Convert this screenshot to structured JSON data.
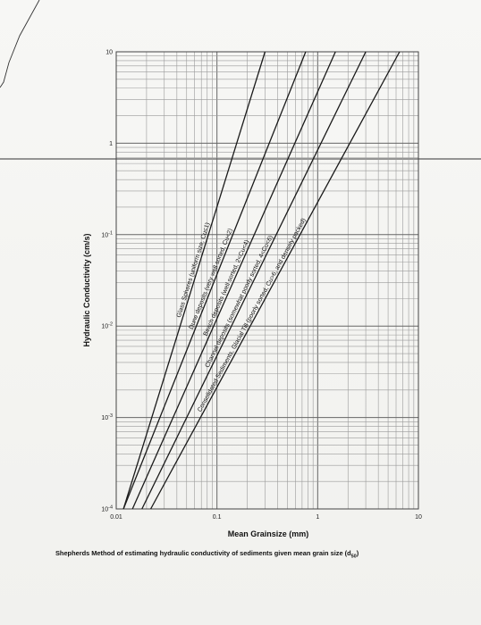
{
  "chart_data": {
    "type": "line",
    "title": "",
    "xlabel": "Mean Grainsize (mm)",
    "ylabel": "Hydraulic Conductivity (cm/s)",
    "xscale": "log",
    "yscale": "log",
    "xlim": [
      0.01,
      10
    ],
    "ylim": [
      0.0001,
      10
    ],
    "x_ticks": [
      "0.01",
      "0.1",
      "1",
      "10"
    ],
    "y_ticks": [
      {
        "base": "10",
        "exp": "",
        "value": 10
      },
      {
        "base": "1",
        "exp": "",
        "value": 1
      },
      {
        "base": "10",
        "exp": "-1",
        "value": 0.1
      },
      {
        "base": "10",
        "exp": "-2",
        "value": 0.01
      },
      {
        "base": "10",
        "exp": "-3",
        "value": 0.001
      },
      {
        "base": "10",
        "exp": "-4",
        "value": 0.0001
      }
    ],
    "grid": true,
    "series": [
      {
        "name": "Glass Spheres (uniform size, Cu≤1)",
        "x": [
          0.0118,
          0.3
        ],
        "y": [
          0.0001,
          10
        ]
      },
      {
        "name": "Dune deposits (very well sorted, Cu<2)",
        "x": [
          0.0118,
          0.76
        ],
        "y": [
          0.0001,
          10
        ]
      },
      {
        "name": "Beach deposits (well sorted, 2<Cu<4)",
        "x": [
          0.0145,
          1.5
        ],
        "y": [
          0.0001,
          10
        ]
      },
      {
        "name": "Channel deposits (somewhat poorly sorted, 4<Cu<6)",
        "x": [
          0.018,
          3.0
        ],
        "y": [
          0.0001,
          10
        ]
      },
      {
        "name": "Consolidated Sediments, Glacial Till (poorly sorted, Cu>6, and densely packed)",
        "x": [
          0.022,
          6.5
        ],
        "y": [
          0.0001,
          10
        ]
      }
    ]
  },
  "caption": {
    "prefix": "Shepherds Method of estimating hydraulic conductivity of sediments given mean grain size (d",
    "sub": "50",
    "suffix": ")"
  }
}
